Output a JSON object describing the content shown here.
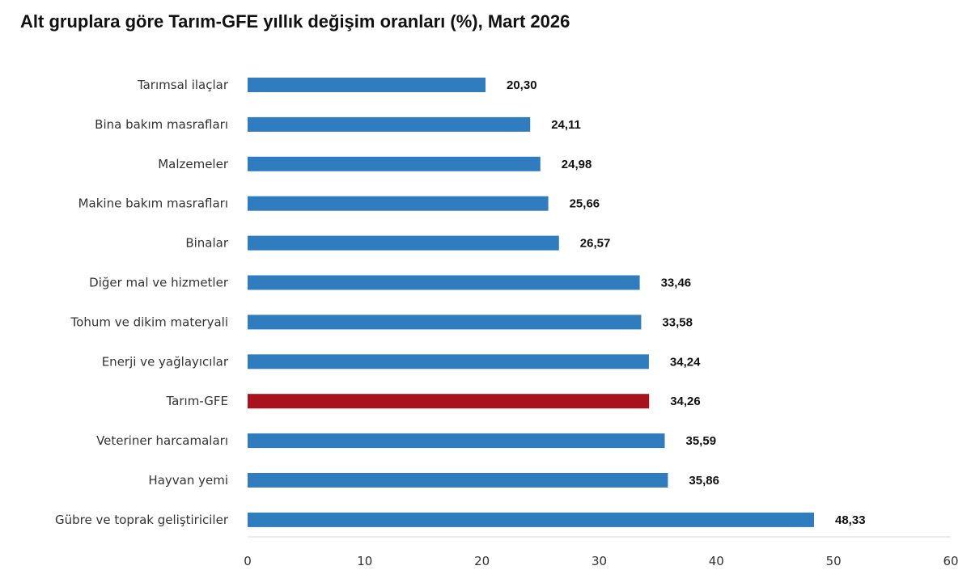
{
  "chart_data": {
    "type": "bar",
    "orientation": "horizontal",
    "title": "Alt gruplara göre Tarım-GFE yıllık değişim oranları (%), Mart 2026",
    "categories": [
      "Tarımsal ilaçlar",
      "Bina bakım masrafları",
      "Malzemeler",
      "Makine bakım masrafları",
      "Binalar",
      "Diğer mal ve hizmetler",
      "Tohum ve dikim materyali",
      "Enerji  ve yağlayıcılar",
      "Tarım-GFE",
      "Veteriner harcamaları",
      "Hayvan yemi",
      "Gübre ve toprak geliştiriciler"
    ],
    "values": [
      20.3,
      24.11,
      24.98,
      25.66,
      26.57,
      33.46,
      33.58,
      34.24,
      34.26,
      35.59,
      35.86,
      48.33
    ],
    "value_labels": [
      "20,30",
      "24,11",
      "24,98",
      "25,66",
      "26,57",
      "33,46",
      "33,58",
      "34,24",
      "34,26",
      "35,59",
      "35,86",
      "48,33"
    ],
    "highlight_category": "Tarım-GFE",
    "colors": {
      "bar": "#2f7cbf",
      "highlight": "#a8121c",
      "axis": "#d9d9d9"
    },
    "xlim": [
      0,
      60
    ],
    "xticks": [
      "0",
      "10",
      "20",
      "30",
      "40",
      "50",
      "60"
    ],
    "xlabel": "",
    "ylabel": "",
    "grid": false,
    "legend": "none"
  }
}
